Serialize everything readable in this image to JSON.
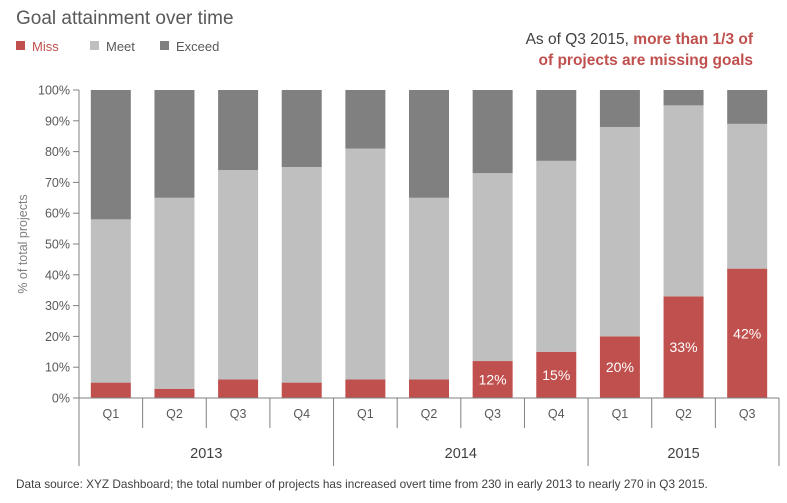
{
  "colors": {
    "miss": "#c0504d",
    "meet": "#bfbfbf",
    "exceed": "#808080",
    "axis": "#808080",
    "title": "#595959",
    "highlight": "#c0504d"
  },
  "header": {
    "title": "Goal attainment over time"
  },
  "annotation": {
    "prefix": "As of Q3 2015, ",
    "highlight_line1": "more than 1/3 of",
    "highlight_line2": "of projects are missing goals"
  },
  "footnote": "Data source: XYZ Dashboard; the total number of projects has increased overt time from 230 in early 2013 to nearly 270 in Q3 2015.",
  "chart_data": {
    "type": "bar",
    "stacked": true,
    "percent": true,
    "title": "Goal attainment over time",
    "ylabel": "% of total projects",
    "ylim": [
      0,
      100
    ],
    "yticks": [
      "0%",
      "10%",
      "20%",
      "30%",
      "40%",
      "50%",
      "60%",
      "70%",
      "80%",
      "90%",
      "100%"
    ],
    "legend": {
      "position": "top-left",
      "entries": [
        "Miss",
        "Meet",
        "Exceed"
      ]
    },
    "categories": [
      "Q1",
      "Q2",
      "Q3",
      "Q4",
      "Q1",
      "Q2",
      "Q3",
      "Q4",
      "Q1",
      "Q2",
      "Q3"
    ],
    "groups": [
      {
        "label": "2013",
        "count": 4
      },
      {
        "label": "2014",
        "count": 4
      },
      {
        "label": "2015",
        "count": 3
      }
    ],
    "series": [
      {
        "name": "Miss",
        "color": "#c0504d",
        "values": [
          5,
          3,
          6,
          5,
          6,
          6,
          12,
          15,
          20,
          33,
          42
        ]
      },
      {
        "name": "Meet",
        "color": "#bfbfbf",
        "values": [
          53,
          62,
          68,
          70,
          75,
          59,
          61,
          62,
          68,
          62,
          47
        ]
      },
      {
        "name": "Exceed",
        "color": "#808080",
        "values": [
          42,
          35,
          26,
          25,
          19,
          35,
          27,
          23,
          12,
          5,
          11
        ]
      }
    ],
    "data_labels": [
      "",
      "",
      "",
      "",
      "",
      "",
      "12%",
      "15%",
      "20%",
      "33%",
      "42%"
    ]
  }
}
